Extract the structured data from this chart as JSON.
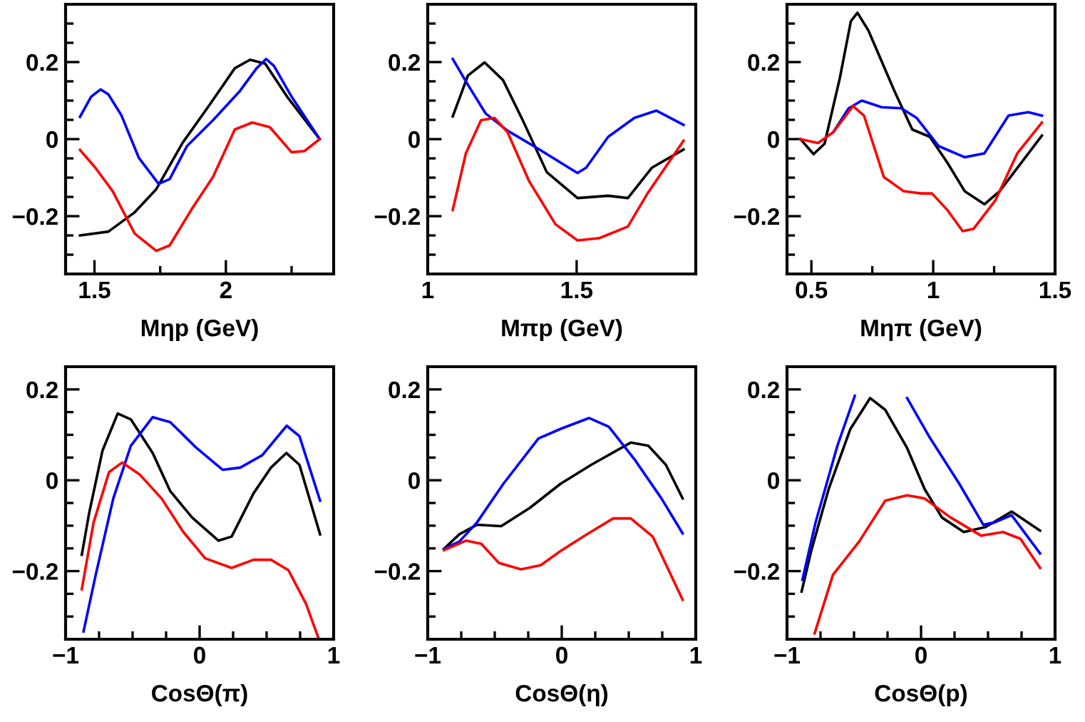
{
  "chart_data": [
    {
      "type": "line",
      "xlabel": "Mηp (GeV)",
      "xlim": [
        1.39,
        2.41
      ],
      "xticks": [
        1.5,
        {
          "value": 1.75,
          "label": null
        },
        2,
        {
          "value": 2.25,
          "label": null
        }
      ],
      "ylim": [
        -0.35,
        0.35
      ],
      "yticks": [
        {
          "value": -0.3,
          "label": null
        },
        {
          "value": -0.25,
          "label": null
        },
        {
          "value": -0.2,
          "label": "−0.2"
        },
        {
          "value": -0.15,
          "label": null
        },
        {
          "value": -0.1,
          "label": null
        },
        {
          "value": -0.05,
          "label": null
        },
        0,
        {
          "value": 0.05,
          "label": null
        },
        {
          "value": 0.1,
          "label": null
        },
        {
          "value": 0.15,
          "label": null
        },
        0.2,
        {
          "value": 0.25,
          "label": null
        },
        {
          "value": 0.3,
          "label": null
        }
      ],
      "series": [
        {
          "color": "#000000",
          "x": [
            1.445,
            1.553,
            1.653,
            1.735,
            1.835,
            1.935,
            2.034,
            2.092,
            2.15,
            2.233,
            2.357
          ],
          "values": [
            -0.25,
            -0.24,
            -0.19,
            -0.13,
            -0.01,
            0.086,
            0.184,
            0.206,
            0.196,
            0.11,
            0.0
          ]
        },
        {
          "color": "#0000ff",
          "x": [
            1.445,
            1.487,
            1.523,
            1.553,
            1.603,
            1.669,
            1.744,
            1.786,
            1.852,
            1.951,
            2.051,
            2.117,
            2.153,
            2.183,
            2.25,
            2.357
          ],
          "values": [
            0.058,
            0.11,
            0.129,
            0.116,
            0.061,
            -0.049,
            -0.116,
            -0.104,
            -0.018,
            0.049,
            0.123,
            0.184,
            0.208,
            0.19,
            0.11,
            0.0
          ]
        },
        {
          "color": "#ff0000",
          "x": [
            1.445,
            1.503,
            1.569,
            1.653,
            1.735,
            1.786,
            1.868,
            1.951,
            2.034,
            2.1,
            2.167,
            2.25,
            2.299,
            2.357
          ],
          "values": [
            -0.028,
            -0.074,
            -0.135,
            -0.245,
            -0.29,
            -0.276,
            -0.184,
            -0.098,
            0.025,
            0.043,
            0.031,
            -0.034,
            -0.031,
            0.0
          ]
        }
      ]
    },
    {
      "type": "line",
      "xlabel": "Mπp (GeV)",
      "xlim": [
        1.0,
        1.9
      ],
      "xticks": [
        1,
        1.5
      ],
      "ylim": [
        -0.35,
        0.35
      ],
      "yticks": [
        {
          "value": -0.3,
          "label": null
        },
        {
          "value": -0.25,
          "label": null
        },
        {
          "value": -0.2,
          "label": "−0.2"
        },
        {
          "value": -0.15,
          "label": null
        },
        {
          "value": -0.1,
          "label": null
        },
        {
          "value": -0.05,
          "label": null
        },
        0,
        {
          "value": 0.05,
          "label": null
        },
        {
          "value": 0.1,
          "label": null
        },
        {
          "value": 0.15,
          "label": null
        },
        0.2,
        {
          "value": 0.25,
          "label": null
        },
        {
          "value": 0.3,
          "label": null
        }
      ],
      "series": [
        {
          "color": "#000000",
          "x": [
            1.084,
            1.135,
            1.191,
            1.253,
            1.319,
            1.4,
            1.503,
            1.606,
            1.672,
            1.753,
            1.859
          ],
          "values": [
            0.059,
            0.165,
            0.199,
            0.153,
            0.049,
            -0.086,
            -0.153,
            -0.147,
            -0.153,
            -0.074,
            -0.027
          ]
        },
        {
          "color": "#0000ff",
          "x": [
            1.084,
            1.135,
            1.194,
            1.268,
            1.371,
            1.459,
            1.503,
            1.532,
            1.606,
            1.694,
            1.768,
            1.859
          ],
          "values": [
            0.208,
            0.141,
            0.067,
            0.022,
            -0.025,
            -0.067,
            -0.088,
            -0.074,
            0.006,
            0.055,
            0.074,
            0.037
          ]
        },
        {
          "color": "#ff0000",
          "x": [
            1.084,
            1.128,
            1.179,
            1.224,
            1.268,
            1.341,
            1.429,
            1.503,
            1.576,
            1.621,
            1.672,
            1.738,
            1.859
          ],
          "values": [
            -0.184,
            -0.037,
            0.049,
            0.055,
            0.018,
            -0.11,
            -0.221,
            -0.263,
            -0.257,
            -0.243,
            -0.227,
            -0.141,
            -0.004
          ]
        }
      ]
    },
    {
      "type": "line",
      "xlabel": "Mηπ (GeV)",
      "xlim": [
        0.4,
        1.5
      ],
      "xticks": [
        0.5,
        {
          "value": 0.75,
          "label": null
        },
        1,
        {
          "value": 1.25,
          "label": null
        },
        1.5
      ],
      "ylim": [
        -0.35,
        0.35
      ],
      "yticks": [
        {
          "value": -0.3,
          "label": null
        },
        {
          "value": -0.25,
          "label": null
        },
        {
          "value": -0.2,
          "label": "−0.2"
        },
        {
          "value": -0.15,
          "label": null
        },
        {
          "value": -0.1,
          "label": null
        },
        {
          "value": -0.05,
          "label": null
        },
        0,
        {
          "value": 0.05,
          "label": null
        },
        {
          "value": 0.1,
          "label": null
        },
        {
          "value": 0.15,
          "label": null
        },
        0.2,
        {
          "value": 0.25,
          "label": null
        },
        {
          "value": 0.3,
          "label": null
        }
      ],
      "series": [
        {
          "color": "#000000",
          "x": [
            0.455,
            0.509,
            0.554,
            0.617,
            0.662,
            0.689,
            0.734,
            0.842,
            0.914,
            0.986,
            1.058,
            1.129,
            1.21,
            1.273,
            1.446
          ],
          "values": [
            0.0,
            -0.039,
            -0.012,
            0.159,
            0.306,
            0.328,
            0.282,
            0.123,
            0.025,
            0.006,
            -0.061,
            -0.135,
            -0.169,
            -0.135,
            0.009
          ]
        },
        {
          "color": "#0000ff",
          "x": [
            0.59,
            0.653,
            0.707,
            0.788,
            0.869,
            0.932,
            1.022,
            1.129,
            1.21,
            1.309,
            1.39,
            1.446
          ],
          "values": [
            0.018,
            0.08,
            0.1,
            0.083,
            0.08,
            0.055,
            -0.018,
            -0.047,
            -0.037,
            0.061,
            0.07,
            0.061
          ]
        },
        {
          "color": "#ff0000",
          "x": [
            0.455,
            0.527,
            0.59,
            0.671,
            0.716,
            0.797,
            0.878,
            0.95,
            0.995,
            1.058,
            1.121,
            1.165,
            1.255,
            1.345,
            1.446
          ],
          "values": [
            0.0,
            -0.01,
            0.018,
            0.086,
            0.061,
            -0.098,
            -0.135,
            -0.141,
            -0.141,
            -0.184,
            -0.239,
            -0.233,
            -0.159,
            -0.037,
            0.043
          ]
        }
      ]
    },
    {
      "type": "line",
      "xlabel": "CosΘ(π)",
      "xlim": [
        -1,
        1
      ],
      "xticks": [
        {
          "value": -1,
          "label": "−1"
        },
        {
          "value": -0.75,
          "label": null
        },
        {
          "value": -0.5,
          "label": null
        },
        {
          "value": -0.25,
          "label": null
        },
        0,
        {
          "value": 0.25,
          "label": null
        },
        {
          "value": 0.5,
          "label": null
        },
        {
          "value": 0.75,
          "label": null
        },
        1
      ],
      "ylim": [
        -0.35,
        0.25
      ],
      "yticks": [
        {
          "value": -0.3,
          "label": null
        },
        {
          "value": -0.25,
          "label": null
        },
        {
          "value": -0.2,
          "label": "−0.2"
        },
        {
          "value": -0.15,
          "label": null
        },
        {
          "value": -0.1,
          "label": null
        },
        {
          "value": -0.05,
          "label": null
        },
        0,
        {
          "value": 0.05,
          "label": null
        },
        {
          "value": 0.1,
          "label": null
        },
        {
          "value": 0.15,
          "label": null
        },
        0.2
      ],
      "series": [
        {
          "color": "#000000",
          "x": [
            -0.879,
            -0.824,
            -0.725,
            -0.611,
            -0.513,
            -0.35,
            -0.219,
            -0.056,
            0.141,
            0.239,
            0.402,
            0.533,
            0.647,
            0.745,
            0.899
          ],
          "values": [
            -0.164,
            -0.072,
            0.065,
            0.147,
            0.134,
            0.06,
            -0.024,
            -0.082,
            -0.133,
            -0.124,
            -0.029,
            0.028,
            0.06,
            0.034,
            -0.119
          ]
        },
        {
          "color": "#0000ff",
          "x": [
            -0.866,
            -0.775,
            -0.644,
            -0.513,
            -0.35,
            -0.219,
            -0.023,
            0.173,
            0.304,
            0.467,
            0.65,
            0.745,
            0.899
          ],
          "values": [
            -0.333,
            -0.208,
            -0.04,
            0.076,
            0.139,
            0.128,
            0.071,
            0.023,
            0.028,
            0.055,
            0.12,
            0.097,
            -0.045
          ]
        },
        {
          "color": "#ff0000",
          "x": [
            -0.879,
            -0.791,
            -0.676,
            -0.578,
            -0.448,
            -0.284,
            -0.121,
            0.042,
            0.239,
            0.402,
            0.533,
            0.663,
            0.794,
            0.89
          ],
          "values": [
            -0.24,
            -0.093,
            0.018,
            0.039,
            0.013,
            -0.04,
            -0.114,
            -0.172,
            -0.193,
            -0.175,
            -0.175,
            -0.198,
            -0.272,
            -0.35
          ]
        }
      ]
    },
    {
      "type": "line",
      "xlabel": "CosΘ(η)",
      "xlim": [
        -1,
        1
      ],
      "xticks": [
        {
          "value": -1,
          "label": "−1"
        },
        {
          "value": -0.75,
          "label": null
        },
        {
          "value": -0.5,
          "label": null
        },
        {
          "value": -0.25,
          "label": null
        },
        0,
        {
          "value": 0.25,
          "label": null
        },
        {
          "value": 0.5,
          "label": null
        },
        {
          "value": 0.75,
          "label": null
        },
        1
      ],
      "ylim": [
        -0.35,
        0.25
      ],
      "yticks": [
        {
          "value": -0.3,
          "label": null
        },
        {
          "value": -0.25,
          "label": null
        },
        {
          "value": -0.2,
          "label": "−0.2"
        },
        {
          "value": -0.15,
          "label": null
        },
        {
          "value": -0.1,
          "label": null
        },
        {
          "value": -0.05,
          "label": null
        },
        0,
        {
          "value": 0.05,
          "label": null
        },
        {
          "value": 0.1,
          "label": null
        },
        {
          "value": 0.15,
          "label": null
        },
        0.2
      ],
      "series": [
        {
          "color": "#000000",
          "x": [
            -0.879,
            -0.764,
            -0.633,
            -0.452,
            -0.239,
            -0.01,
            0.22,
            0.515,
            0.646,
            0.777,
            0.902
          ],
          "values": [
            -0.151,
            -0.119,
            -0.098,
            -0.101,
            -0.061,
            -0.008,
            0.034,
            0.083,
            0.076,
            0.034,
            -0.04
          ]
        },
        {
          "color": "#0000ff",
          "x": [
            -0.879,
            -0.764,
            -0.633,
            -0.436,
            -0.174,
            -0.01,
            0.203,
            0.351,
            0.548,
            0.744,
            0.902
          ],
          "values": [
            -0.151,
            -0.135,
            -0.093,
            -0.008,
            0.092,
            0.113,
            0.137,
            0.118,
            0.044,
            -0.04,
            -0.117
          ]
        },
        {
          "color": "#ff0000",
          "x": [
            -0.879,
            -0.715,
            -0.6,
            -0.469,
            -0.305,
            -0.157,
            -0.01,
            0.187,
            0.384,
            0.515,
            0.679,
            0.902
          ],
          "values": [
            -0.154,
            -0.133,
            -0.14,
            -0.182,
            -0.196,
            -0.187,
            -0.156,
            -0.119,
            -0.084,
            -0.084,
            -0.124,
            -0.263
          ]
        }
      ]
    },
    {
      "type": "line",
      "xlabel": "CosΘ(p)",
      "xlim": [
        -1,
        1
      ],
      "xticks": [
        {
          "value": -1,
          "label": "−1"
        },
        {
          "value": -0.75,
          "label": null
        },
        {
          "value": -0.5,
          "label": null
        },
        {
          "value": -0.25,
          "label": null
        },
        0,
        {
          "value": 0.25,
          "label": null
        },
        {
          "value": 0.5,
          "label": null
        },
        {
          "value": 0.75,
          "label": null
        },
        1
      ],
      "ylim": [
        -0.35,
        0.25
      ],
      "yticks": [
        {
          "value": -0.3,
          "label": null
        },
        {
          "value": -0.25,
          "label": null
        },
        {
          "value": -0.2,
          "label": "−0.2"
        },
        {
          "value": -0.15,
          "label": null
        },
        {
          "value": -0.1,
          "label": null
        },
        {
          "value": -0.05,
          "label": null
        },
        0,
        {
          "value": 0.05,
          "label": null
        },
        {
          "value": 0.1,
          "label": null
        },
        {
          "value": 0.15,
          "label": null
        },
        0.2
      ],
      "series": [
        {
          "color": "#000000",
          "x": [
            -0.891,
            -0.82,
            -0.689,
            -0.527,
            -0.38,
            -0.267,
            -0.104,
            0.026,
            0.156,
            0.319,
            0.481,
            0.676,
            0.888
          ],
          "values": [
            -0.245,
            -0.156,
            -0.019,
            0.113,
            0.181,
            0.155,
            0.071,
            -0.019,
            -0.082,
            -0.114,
            -0.103,
            -0.069,
            -0.111
          ]
        },
        {
          "color": "#0000ff",
          "x": [
            -0.885,
            -0.787,
            -0.624,
            -0.494,
            -0.43,
            -0.3,
            -0.2,
            -0.104,
            0.059,
            0.286,
            0.465,
            0.547,
            0.676,
            0.888
          ],
          "values": [
            -0.219,
            -0.093,
            0.076,
            0.186,
            null,
            null,
            null,
            0.181,
            0.097,
            -0.008,
            -0.098,
            -0.093,
            -0.077,
            -0.161
          ]
        },
        {
          "color": "#ff0000",
          "x": [
            -0.794,
            -0.657,
            -0.462,
            -0.267,
            -0.104,
            0.026,
            0.221,
            0.449,
            0.612,
            0.742,
            0.888
          ],
          "values": [
            -0.337,
            -0.208,
            -0.135,
            -0.045,
            -0.033,
            -0.04,
            -0.082,
            -0.122,
            -0.114,
            -0.129,
            -0.193
          ]
        }
      ]
    }
  ]
}
